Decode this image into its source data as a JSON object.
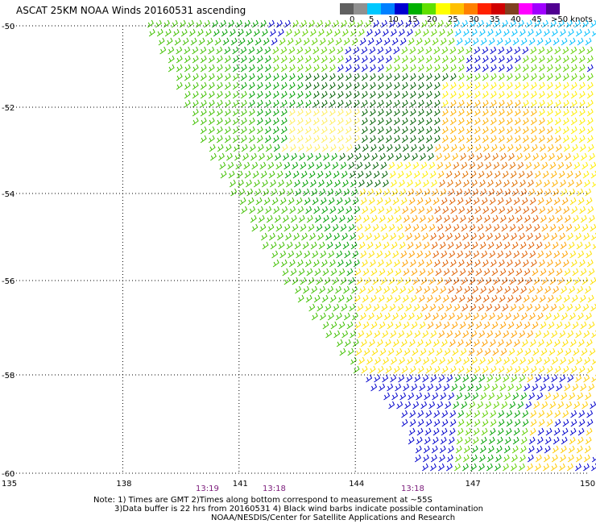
{
  "title": "ASCAT 25KM NOAA Winds 20160531 ascending",
  "legend": {
    "colors": [
      "#606060",
      "#909090",
      "#00c8ff",
      "#0080ff",
      "#0000d0",
      "#00b000",
      "#60e000",
      "#ffff00",
      "#ffc000",
      "#ff8000",
      "#ff2000",
      "#d00000",
      "#804020",
      "#ff00ff",
      "#a000ff",
      "#500090"
    ],
    "ticks": [
      "0",
      "5",
      "10",
      "15",
      "20",
      "25",
      "30",
      "35",
      "40",
      "45",
      ">50 knots"
    ]
  },
  "axes": {
    "lat_labels": [
      "-50",
      "-52",
      "-54",
      "-56",
      "-58",
      "-60"
    ],
    "lon_labels": [
      "135",
      "138",
      "141",
      "144",
      "147",
      "150"
    ]
  },
  "times": [
    "13:19",
    "13:18",
    "13:18"
  ],
  "notes": {
    "line1": "Note: 1) Times are GMT 2)Times along bottom correspond to measurement at ~55S",
    "line2": "3)Data buffer is 22 hrs from 20160531 4) Black wind barbs indicate possible contamination",
    "line3": "NOAA/NESDIS/Center for Satellite Applications and Research"
  }
}
